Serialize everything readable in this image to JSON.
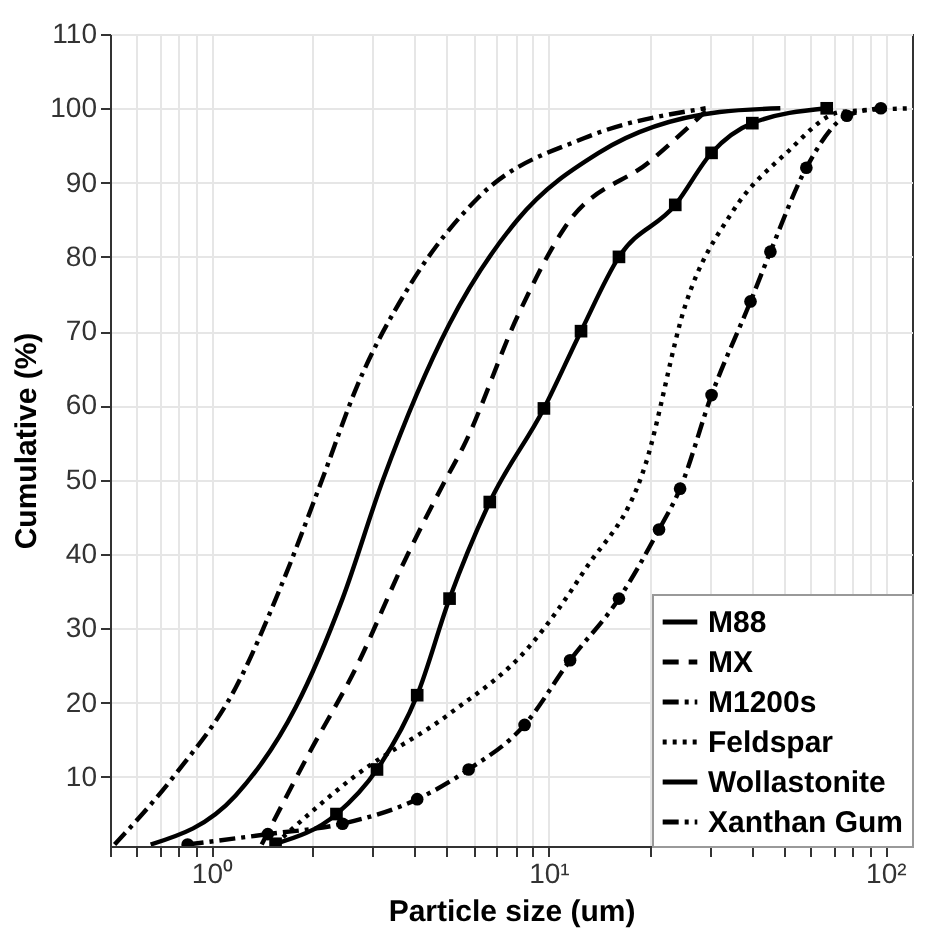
{
  "chart_data": {
    "type": "line",
    "xlabel": "Particle size (um)",
    "ylabel": "Cumulative (%)",
    "log": "x",
    "grid": true,
    "legend": "bottom right",
    "xlim": [
      0.5,
      120
    ],
    "ylim": [
      0.7,
      110
    ],
    "xticks": [
      {
        "value": 0.5,
        "label": null
      },
      {
        "value": 0.6,
        "label": null
      },
      {
        "value": 0.7,
        "label": null
      },
      {
        "value": 0.8,
        "label": null
      },
      {
        "value": 0.9,
        "label": null
      },
      {
        "value": 1,
        "label": "10⁰"
      },
      {
        "value": 2,
        "label": null
      },
      {
        "value": 3,
        "label": null
      },
      {
        "value": 4,
        "label": null
      },
      {
        "value": 5,
        "label": null
      },
      {
        "value": 6,
        "label": null
      },
      {
        "value": 7,
        "label": null
      },
      {
        "value": 8,
        "label": null
      },
      {
        "value": 9,
        "label": null
      },
      {
        "value": 10,
        "label": "10¹"
      },
      {
        "value": 20,
        "label": null
      },
      {
        "value": 30,
        "label": null
      },
      {
        "value": 40,
        "label": null
      },
      {
        "value": 50,
        "label": null
      },
      {
        "value": 60,
        "label": null
      },
      {
        "value": 70,
        "label": null
      },
      {
        "value": 80,
        "label": null
      },
      {
        "value": 90,
        "label": null
      },
      {
        "value": 100,
        "label": "10²"
      }
    ],
    "yticks": [
      10,
      20,
      30,
      40,
      50,
      60,
      70,
      80,
      90,
      100,
      110
    ],
    "series": [
      {
        "name": "M88",
        "color": "#000000",
        "line_style": "solid",
        "marker": "none",
        "x": [
          0.66,
          1.18,
          1.78,
          2.45,
          3.23,
          5.09,
          8.1,
          14.1,
          32.2,
          48.8
        ],
        "values": [
          0.9,
          7.5,
          19.4,
          34,
          50,
          71,
          85,
          94,
          99.5,
          100
        ]
      },
      {
        "name": "MX",
        "color": "#000000",
        "line_style": "dashed",
        "marker": "none",
        "x": [
          1.41,
          1.94,
          2.7,
          3.7,
          4.9,
          5.6,
          8.1,
          11.2,
          20.2,
          29.3
        ],
        "values": [
          0.9,
          13,
          24.9,
          38.6,
          49.6,
          54.5,
          72,
          84,
          93,
          99.6
        ]
      },
      {
        "name": "M1200s",
        "color": "#000000",
        "line_style": "dashdot",
        "marker": "none",
        "x": [
          0.516,
          0.78,
          1.18,
          1.62,
          2.13,
          2.7,
          3.86,
          6.2,
          12.8,
          29.3
        ],
        "values": [
          0.9,
          10.3,
          22,
          36,
          50,
          62.5,
          76,
          88,
          96,
          100
        ]
      },
      {
        "name": "Feldspar",
        "color": "#000000",
        "line_style": "dotted",
        "marker": "none",
        "x": [
          1.55,
          2.7,
          5.09,
          8.8,
          12.8,
          19.4,
          25.5,
          35.1,
          50.9,
          73.8,
          120
        ],
        "values": [
          1,
          10.3,
          18.5,
          27.6,
          37.8,
          52,
          73.5,
          86,
          94,
          99.5,
          100
        ]
      },
      {
        "name": "Wollastonite",
        "color": "#000000",
        "line_style": "solid",
        "marker": "square",
        "x": [
          1.55,
          2.35,
          3.1,
          4.08,
          5.09,
          6.7,
          9.7,
          12.5,
          16.2,
          23.8,
          30.5,
          40.3,
          67
        ],
        "values": [
          1,
          5,
          11,
          21,
          34,
          47,
          59.6,
          70,
          80,
          87,
          94,
          98,
          100
        ]
      },
      {
        "name": "Xanthan Gum",
        "color": "#000000",
        "line_style": "dashdot",
        "marker": "circle",
        "x": [
          0.85,
          1.47,
          2.45,
          4.08,
          5.8,
          8.5,
          11.6,
          16.2,
          21.3,
          24.6,
          30.5,
          39.8,
          45.6,
          58.3,
          76.9,
          97
        ],
        "values": [
          0.9,
          2.3,
          3.7,
          7,
          11,
          17,
          25.7,
          34,
          43.3,
          48.8,
          61.4,
          74,
          80.7,
          92,
          99,
          100
        ]
      }
    ]
  }
}
